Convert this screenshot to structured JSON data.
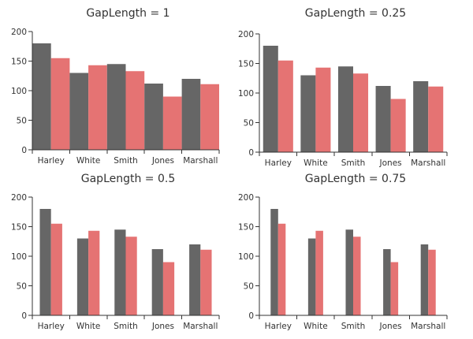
{
  "colors": {
    "series_a": "#666666",
    "series_b": "#e57373",
    "text": "#333333",
    "axis": "#333333"
  },
  "chart_data": [
    {
      "type": "bar",
      "title": "GapLength = 1",
      "gap_length": 1,
      "categories": [
        "Harley",
        "White",
        "Smith",
        "Jones",
        "Marshall"
      ],
      "series": [
        {
          "values": [
            180,
            130,
            145,
            112,
            120
          ]
        },
        {
          "values": [
            155,
            143,
            133,
            90,
            111
          ]
        }
      ],
      "ylim": [
        0,
        200
      ],
      "yticks": [
        "0",
        "50",
        "100",
        "150",
        "200"
      ],
      "xlabel": "",
      "ylabel": "",
      "grid": false,
      "legend": "none"
    },
    {
      "type": "bar",
      "title": "GapLength = 0.25",
      "gap_length": 0.25,
      "categories": [
        "Harley",
        "White",
        "Smith",
        "Jones",
        "Marshall"
      ],
      "series": [
        {
          "values": [
            180,
            130,
            145,
            112,
            120
          ]
        },
        {
          "values": [
            155,
            143,
            133,
            90,
            111
          ]
        }
      ],
      "ylim": [
        0,
        200
      ],
      "yticks": [
        "0",
        "50",
        "100",
        "150",
        "200"
      ],
      "xlabel": "",
      "ylabel": "",
      "grid": false,
      "legend": "none"
    },
    {
      "type": "bar",
      "title": "GapLength = 0.5",
      "gap_length": 0.5,
      "categories": [
        "Harley",
        "White",
        "Smith",
        "Jones",
        "Marshall"
      ],
      "series": [
        {
          "values": [
            180,
            130,
            145,
            112,
            120
          ]
        },
        {
          "values": [
            155,
            143,
            133,
            90,
            111
          ]
        }
      ],
      "ylim": [
        0,
        200
      ],
      "yticks": [
        "0",
        "50",
        "100",
        "150",
        "200"
      ],
      "xlabel": "",
      "ylabel": "",
      "grid": false,
      "legend": "none"
    },
    {
      "type": "bar",
      "title": "GapLength = 0.75",
      "gap_length": 0.75,
      "categories": [
        "Harley",
        "White",
        "Smith",
        "Jones",
        "Marshall"
      ],
      "series": [
        {
          "values": [
            180,
            130,
            145,
            112,
            120
          ]
        },
        {
          "values": [
            155,
            143,
            133,
            90,
            111
          ]
        }
      ],
      "ylim": [
        0,
        200
      ],
      "yticks": [
        "0",
        "50",
        "100",
        "150",
        "200"
      ],
      "xlabel": "",
      "ylabel": "",
      "grid": false,
      "legend": "none"
    }
  ]
}
